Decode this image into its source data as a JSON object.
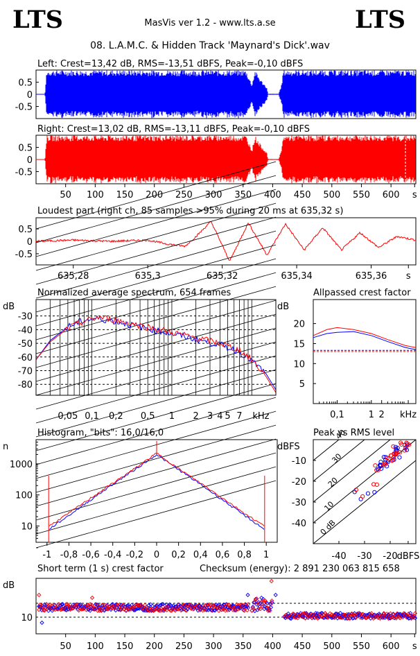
{
  "header": {
    "brand_left": "LTS",
    "brand_right": "LTS",
    "app": "MasVis ver 1.2 - www.lts.a.se",
    "file": "08. L.A.M.C. & Hidden Track 'Maynard's Dick'.wav"
  },
  "chart_data": [
    {
      "id": "wave-left",
      "type": "area",
      "title": "Left: Crest=13,42 dB, RMS=-13,51 dBFS, Peak=-0,10 dBFS",
      "ytick_labels": [
        "0.5",
        "0",
        "-0.5"
      ],
      "yticks": [
        0.5,
        0,
        -0.5
      ],
      "ylim": [
        -1,
        1
      ],
      "xlim": [
        0,
        642
      ],
      "color": "#0000ff",
      "envelope": {
        "x": [
          15,
          18,
          25,
          60,
          300,
          355,
          365,
          370,
          380,
          390,
          392,
          410,
          415,
          418,
          430,
          642
        ],
        "amp": [
          0,
          1,
          1,
          1,
          1,
          1,
          0.4,
          1,
          0.6,
          0.3,
          0.02,
          0.02,
          0.4,
          1,
          1,
          1
        ]
      }
    },
    {
      "id": "wave-right",
      "type": "area",
      "title": "Right: Crest=13,02 dB, RMS=-13,11 dBFS, Peak=-0,10 dBFS",
      "ytick_labels": [
        "0.5",
        "0",
        "-0.5"
      ],
      "yticks": [
        0.5,
        0,
        -0.5
      ],
      "ylim": [
        -1,
        1
      ],
      "xlim": [
        0,
        642
      ],
      "color": "#ff0000",
      "xtick_labels": [
        "50",
        "100",
        "150",
        "200",
        "250",
        "300",
        "350",
        "400",
        "450",
        "500",
        "550",
        "600",
        "s"
      ],
      "xticks": [
        50,
        100,
        150,
        200,
        250,
        300,
        350,
        400,
        450,
        500,
        550,
        600,
        640
      ],
      "envelope": {
        "x": [
          15,
          18,
          25,
          60,
          300,
          355,
          365,
          370,
          380,
          390,
          392,
          410,
          415,
          418,
          430,
          642
        ],
        "amp": [
          0,
          1,
          1,
          1,
          1,
          1,
          0.4,
          1,
          0.6,
          0.3,
          0.02,
          0.02,
          0.4,
          1,
          1,
          1
        ]
      }
    },
    {
      "id": "loudest",
      "type": "line",
      "title": "Loudest part (right ch, 85 samples >95% during 20 ms at 635,32 s)",
      "xlim": [
        635.27,
        635.372
      ],
      "ylim": [
        -0.95,
        0.95
      ],
      "ytick_labels": [
        "0.5",
        "0",
        "-0.5"
      ],
      "yticks": [
        0.5,
        0,
        -0.5
      ],
      "xtick_labels": [
        "635,28",
        "635,3",
        "635,32",
        "635,34",
        "635,36",
        "s"
      ],
      "xticks": [
        635.28,
        635.3,
        635.32,
        635.34,
        635.36,
        635.37
      ],
      "series": [
        {
          "color": "#ff0000",
          "x": [
            635.27,
            635.28,
            635.29,
            635.3,
            635.305,
            635.31,
            635.313,
            635.317,
            635.322,
            635.327,
            635.332,
            635.337,
            635.342,
            635.347,
            635.352,
            635.357,
            635.362,
            635.367,
            635.372
          ],
          "y": [
            0.0,
            0.05,
            0.0,
            0.05,
            -0.1,
            -0.2,
            0.2,
            0.8,
            -0.8,
            0.75,
            -0.55,
            0.7,
            -0.35,
            0.55,
            -0.35,
            0.35,
            -0.25,
            0.2,
            0.05
          ]
        }
      ]
    },
    {
      "id": "spectrum",
      "type": "line",
      "title": "Normalized average spectrum, 654 frames",
      "ylabel": "dB",
      "xlabel": "kHz",
      "xscale": "log",
      "xlim": [
        0.02,
        20
      ],
      "ylim": [
        -88,
        -18
      ],
      "ytick_labels": [
        "-30",
        "-40",
        "-50",
        "-60",
        "-70",
        "-80"
      ],
      "yticks": [
        -30,
        -40,
        -50,
        -60,
        -70,
        -80
      ],
      "xtick_labels": [
        "0,05",
        "0,1",
        "0,2",
        "0,5",
        "1",
        "2",
        "3",
        "4",
        "5",
        "7",
        "kHz"
      ],
      "xticks": [
        0.05,
        0.1,
        0.2,
        0.5,
        1,
        2,
        3,
        4,
        5,
        7,
        13
      ],
      "series": [
        {
          "color": "#0000ff",
          "x": [
            0.02,
            0.03,
            0.05,
            0.08,
            0.12,
            0.2,
            0.4,
            1,
            2,
            4,
            7,
            10,
            15,
            20
          ],
          "y": [
            -62,
            -48,
            -38,
            -33,
            -32,
            -34,
            -38,
            -43,
            -47,
            -51,
            -56,
            -63,
            -72,
            -84
          ]
        },
        {
          "color": "#ff0000",
          "x": [
            0.02,
            0.03,
            0.05,
            0.08,
            0.12,
            0.2,
            0.4,
            1,
            2,
            4,
            7,
            10,
            15,
            20
          ],
          "y": [
            -62,
            -49,
            -39,
            -34,
            -31,
            -33,
            -37,
            -42,
            -46,
            -50,
            -55,
            -62,
            -74,
            -86
          ]
        }
      ]
    },
    {
      "id": "crest-allpassed",
      "type": "line",
      "title": "Allpassed crest factor",
      "ylabel": "dB",
      "xlabel": "kHz",
      "xscale": "log",
      "xlim": [
        0.02,
        20
      ],
      "ylim": [
        0,
        26
      ],
      "ytick_labels": [
        "20",
        "15",
        "10",
        "5"
      ],
      "yticks": [
        20,
        15,
        10,
        5
      ],
      "xtick_labels": [
        "0,1",
        "1",
        "2",
        "kHz"
      ],
      "xticks": [
        0.1,
        1,
        2,
        12
      ],
      "series": [
        {
          "color": "#0000ff",
          "x": [
            0.02,
            0.05,
            0.1,
            0.3,
            1,
            3,
            10,
            20
          ],
          "y": [
            16.5,
            17.5,
            17.8,
            18,
            17,
            15.5,
            14,
            13.5
          ]
        },
        {
          "color": "#ff0000",
          "x": [
            0.02,
            0.05,
            0.1,
            0.3,
            1,
            3,
            10,
            20
          ],
          "y": [
            17,
            18.5,
            19,
            18.5,
            17.5,
            16,
            14.5,
            14
          ]
        }
      ],
      "reference": {
        "blue": 13.3,
        "red": 13.0
      }
    },
    {
      "id": "histogram",
      "type": "line",
      "title": "Histogram, \"bits\": 16,0/16,0",
      "ylabel": "n",
      "yscale": "log",
      "xlim": [
        -1.1,
        1.1
      ],
      "ytick_labels": [
        "1000",
        "100",
        "10"
      ],
      "yticks": [
        1000,
        100,
        10
      ],
      "xtick_labels": [
        "-1",
        "-0,8",
        "-0,6",
        "-0,4",
        "-0,2",
        "0",
        "0,2",
        "0,4",
        "0,6",
        "0,8",
        "1"
      ],
      "xticks": [
        -1,
        -0.8,
        -0.6,
        -0.4,
        -0.2,
        0,
        0.2,
        0.4,
        0.6,
        0.8,
        1
      ],
      "series": [
        {
          "color": "#0000ff",
          "x": [
            -0.98,
            -0.8,
            -0.6,
            -0.4,
            -0.2,
            0,
            0.2,
            0.4,
            0.6,
            0.8,
            0.98
          ],
          "y": [
            8,
            22,
            70,
            220,
            650,
            2000,
            650,
            220,
            70,
            22,
            8
          ]
        },
        {
          "color": "#ff0000",
          "x": [
            -0.98,
            -0.8,
            -0.6,
            -0.4,
            -0.2,
            0,
            0.2,
            0.4,
            0.6,
            0.8,
            0.98
          ],
          "y": [
            10,
            26,
            80,
            240,
            700,
            2200,
            700,
            240,
            80,
            26,
            10
          ]
        }
      ]
    },
    {
      "id": "peak-rms",
      "type": "scatter",
      "title": "Peak vs RMS level",
      "ylabel": "dBFS",
      "xlabel": "dBFS",
      "xlim": [
        -50,
        -10
      ],
      "ylim": [
        -50,
        0
      ],
      "ytick_labels": [
        "-10",
        "-20",
        "-30",
        "-40"
      ],
      "yticks": [
        -10,
        -20,
        -30,
        -40
      ],
      "xtick_labels": [
        "-40",
        "-30",
        "-20",
        "dBFS"
      ],
      "xticks": [
        -40,
        -30,
        -20,
        -13
      ],
      "diagonal_labels": [
        "40",
        "30",
        "20",
        "10",
        "0 dB"
      ],
      "series": [
        {
          "color": "#0000ff",
          "x": [
            -22,
            -20,
            -18,
            -25,
            -15,
            -19,
            -21,
            -17,
            -28,
            -33,
            -14,
            -16,
            -23
          ],
          "y": [
            -12,
            -10,
            -6,
            -14,
            -4,
            -8,
            -9,
            -7,
            -24,
            -27,
            -3,
            -5,
            -13
          ]
        },
        {
          "color": "#ff0000",
          "x": [
            -21,
            -19,
            -17,
            -24,
            -14,
            -18,
            -20,
            -16,
            -27,
            -32,
            -13,
            -15,
            -22
          ],
          "y": [
            -11,
            -9,
            -5,
            -13,
            -3,
            -7,
            -8,
            -6,
            -23,
            -26,
            -2,
            -4,
            -12
          ]
        }
      ]
    },
    {
      "id": "short-crest",
      "type": "scatter",
      "title": "Short term (1 s) crest factor",
      "ylabel": "dB",
      "xlim": [
        0,
        642
      ],
      "ylim": [
        4,
        24
      ],
      "ytick_labels": [
        "10"
      ],
      "yticks": [
        10
      ],
      "ref_lines": [
        10,
        15
      ],
      "checksum": "Checksum (energy):  2 891 230 063 815 658",
      "xtick_labels": [
        "50",
        "100",
        "150",
        "200",
        "250",
        "300",
        "350",
        "400",
        "450",
        "500",
        "550",
        "600",
        "s"
      ],
      "xticks": [
        50,
        100,
        150,
        200,
        250,
        300,
        350,
        400,
        450,
        500,
        550,
        600,
        640
      ],
      "segments": [
        {
          "x": [
            5,
            360
          ],
          "center": 13.5,
          "spread": 1.2
        },
        {
          "x": [
            365,
            400
          ],
          "center": 14.5,
          "spread": 2.5
        },
        {
          "x": [
            420,
            642
          ],
          "center": 10.5,
          "spread": 1.0
        }
      ],
      "outliers": {
        "x": [
          5,
          10,
          95,
          358,
          398,
          405
        ],
        "y": [
          18,
          8,
          17,
          18,
          23,
          18
        ]
      }
    }
  ]
}
